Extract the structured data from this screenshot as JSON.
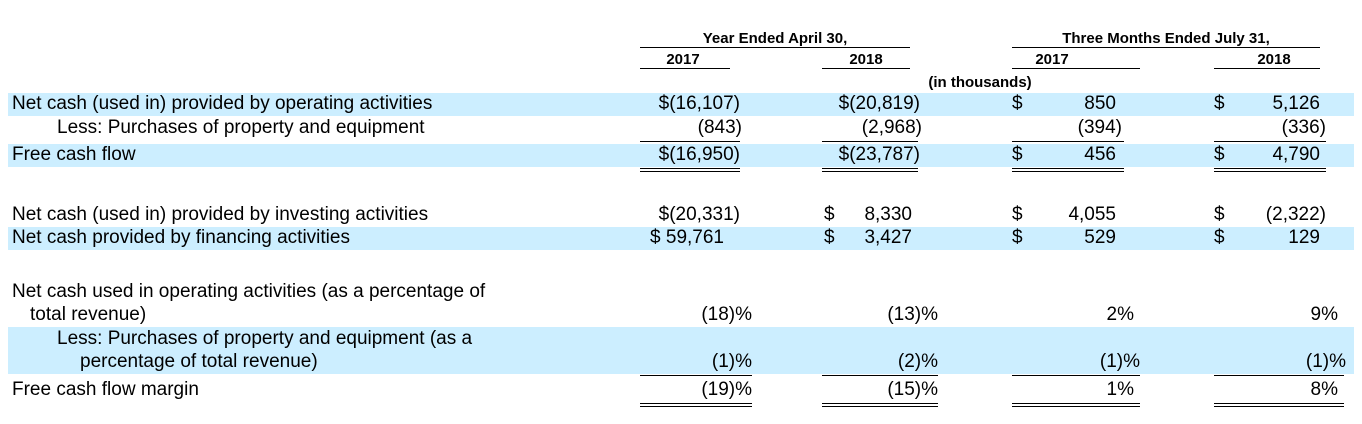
{
  "header": {
    "group1": "Year Ended April 30,",
    "group2": "Three Months Ended July 31,",
    "col1_year": "2017",
    "col2_year": "2018",
    "col3_year": "2017",
    "col4_year": "2018",
    "units": "(in thousands)"
  },
  "rows": {
    "r1": {
      "label": "Net cash (used in) provided by operating activities",
      "c1": "$(16,107)",
      "c2": "$(20,819)",
      "c3": "850",
      "c4": "5,126"
    },
    "r2": {
      "label": "Less: Purchases of property and equipment",
      "c1": "(843)",
      "c2": "(2,968)",
      "c3": "(394)",
      "c4": "(336)"
    },
    "r3": {
      "label": "Free cash flow",
      "c1": "$(16,950)",
      "c2": "$(23,787)",
      "c3": "456",
      "c4": "4,790"
    },
    "r4": {
      "label": "Net cash (used in) provided by investing activities",
      "c1": "$(20,331)",
      "c2": "8,330",
      "c3": "4,055",
      "c4": "(2,322)"
    },
    "r5": {
      "label": "Net cash provided by financing activities",
      "c1": "$ 59,761",
      "c2": "3,427",
      "c3": "529",
      "c4": "129"
    },
    "r6": {
      "label_line1": "Net cash used in operating activities (as a percentage of",
      "label_line2": "total revenue)",
      "c1": "(18)%",
      "c2": "(13)%",
      "c3": "2%",
      "c4": "9%"
    },
    "r7": {
      "label_line1": "Less: Purchases of property and equipment (as a",
      "label_line2": "percentage of total revenue)",
      "c1": "(1)%",
      "c2": "(2)%",
      "c3": "(1)%",
      "c4": "(1)%"
    },
    "r8": {
      "label": "Free cash flow margin",
      "c1": "(19)%",
      "c2": "(15)%",
      "c3": "1%",
      "c4": "8%"
    }
  },
  "dollar_sign": "$"
}
